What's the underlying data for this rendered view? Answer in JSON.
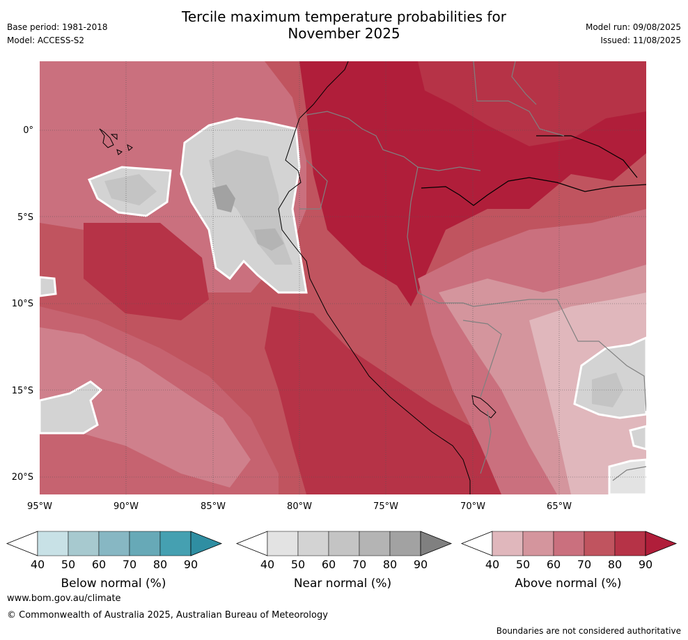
{
  "title_line1": "Tercile maximum temperature probabilities for",
  "title_line2": "November 2025",
  "base_period": "Base period: 1981-2018",
  "model": "Model: ACCESS-S2",
  "model_run": "Model run: 09/08/2025",
  "issued": "Issued: 11/08/2025",
  "lat_labels": [
    "0°",
    "5°S",
    "10°S",
    "15°S",
    "20°S"
  ],
  "lon_labels": [
    "95°W",
    "90°W",
    "85°W",
    "80°W",
    "75°W",
    "70°W",
    "65°W"
  ],
  "colorbars": [
    {
      "label": "Below normal (%)",
      "ticks": [
        "40",
        "50",
        "60",
        "70",
        "80",
        "90"
      ],
      "colors": [
        "#c8e1e6",
        "#a7c9cf",
        "#87b7c3",
        "#67a9b7",
        "#45a0b1"
      ],
      "extend_color": "#2f8ea2"
    },
    {
      "label": "Near normal (%)",
      "ticks": [
        "40",
        "50",
        "60",
        "70",
        "80",
        "90"
      ],
      "colors": [
        "#e3e3e3",
        "#d3d3d3",
        "#c4c4c4",
        "#b4b4b4",
        "#a2a2a2"
      ],
      "extend_color": "#808080"
    },
    {
      "label": "Above normal (%)",
      "ticks": [
        "40",
        "50",
        "60",
        "70",
        "80",
        "90"
      ],
      "colors": [
        "#e0b7bc",
        "#d4959d",
        "#ca707e",
        "#c0545f",
        "#b63347"
      ],
      "extend_color": "#b01e3a"
    }
  ],
  "footer": {
    "url": "www.bom.gov.au/climate",
    "copyright": "© Commonwealth of Australia 2025, Australian Bureau of Meteorology",
    "disclaimer": "Boundaries are not considered authoritative"
  }
}
